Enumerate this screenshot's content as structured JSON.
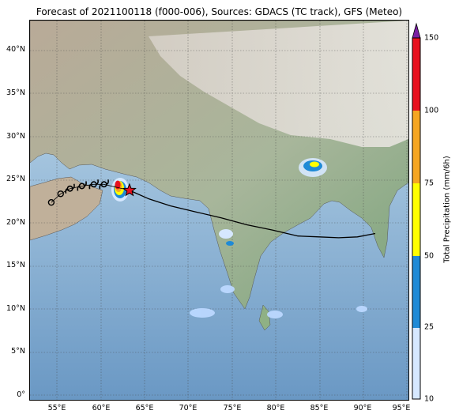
{
  "title": "Forecast of 2021100118 (f000-006), Sources: GDACS (TC track), GFS (Meteo)",
  "map": {
    "lon_range": [
      51.5,
      96
    ],
    "lat_range": [
      -0.5,
      43.5
    ],
    "lat_ticks": [
      "40°N",
      "35°N",
      "30°N",
      "25°N",
      "20°N",
      "15°N",
      "10°N",
      "5°N",
      "0°"
    ],
    "lon_ticks": [
      "55°E",
      "60°E",
      "65°E",
      "70°E",
      "75°E",
      "80°E",
      "85°E",
      "90°E",
      "95°E"
    ],
    "grid": true,
    "track": {
      "storm_center": {
        "lon": 63.2,
        "lat": 23.8
      },
      "past_track_lons": [
        92.1,
        90.0,
        87.8,
        85.5,
        83.0,
        80.0,
        77.0,
        74.0,
        71.0,
        68.0,
        65.5,
        63.2
      ],
      "past_track_lats": [
        18.8,
        18.4,
        18.3,
        18.4,
        18.5,
        19.2,
        19.8,
        20.6,
        21.3,
        22.0,
        22.8,
        23.8
      ],
      "forecast_symbols": [
        {
          "lon": 60.2,
          "lat": 24.5,
          "kind": "hurricane"
        },
        {
          "lon": 59.0,
          "lat": 24.5,
          "kind": "hurricane"
        },
        {
          "lon": 57.6,
          "lat": 24.3,
          "kind": "hurricane"
        },
        {
          "lon": 56.2,
          "lat": 24.0,
          "kind": "hurricane"
        },
        {
          "lon": 55.1,
          "lat": 23.4,
          "kind": "low"
        },
        {
          "lon": 54.0,
          "lat": 22.4,
          "kind": "low"
        }
      ]
    }
  },
  "colorbar": {
    "label": "Total Precipitation (mm/6h)",
    "ticks": [
      "10",
      "25",
      "50",
      "75",
      "100",
      "150"
    ],
    "colors": [
      "#d6e8ff",
      "#1f8ad6",
      "#ffff00",
      "#f5a623",
      "#e8101e",
      "#7a1fa2"
    ]
  }
}
